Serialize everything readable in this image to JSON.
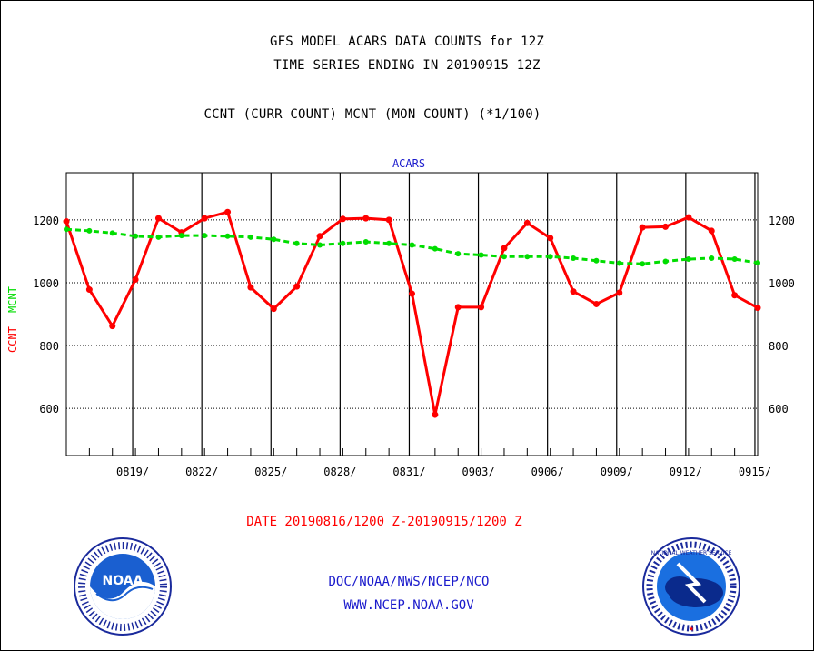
{
  "header": {
    "line1": "GFS MODEL ACARS DATA COUNTS for 12Z",
    "line2": "TIME SERIES ENDING IN 20190915 12Z",
    "line3": "CCNT (CURR COUNT) MCNT (MON COUNT) (*1/100)"
  },
  "date_range": "DATE 20190816/1200 Z-20190915/1200 Z",
  "footer": {
    "org": "DOC/NOAA/NWS/NCEP/NCO",
    "url": "WWW.NCEP.NOAA.GOV"
  },
  "logos": {
    "noaa_text": "NOAA",
    "nws_text": "NATIONAL WEATHER SERVICE"
  },
  "colors": {
    "ccnt": "#ff0000",
    "mcnt": "#00dd00",
    "title": "#1a1acc",
    "date": "#ff0000"
  },
  "chart_data": {
    "type": "line",
    "title": "ACARS",
    "ylabel_left": [
      "CCNT",
      "MCNT"
    ],
    "ylim": [
      450,
      1350
    ],
    "yticks": [
      600,
      800,
      1000,
      1200
    ],
    "grid": true,
    "x_start_day": "0816",
    "xtick_labels": [
      "0819/",
      "0822/",
      "0825/",
      "0828/",
      "0831/",
      "0903/",
      "0906/",
      "0909/",
      "0912/",
      "0915/"
    ],
    "series": [
      {
        "name": "CCNT",
        "values": [
          1195,
          978,
          862,
          1010,
          1205,
          1160,
          1205,
          1225,
          985,
          917,
          988,
          1148,
          1203,
          1205,
          1200,
          965,
          580,
          922,
          922,
          1110,
          1190,
          1142,
          972,
          932,
          968,
          1176,
          1178,
          1208,
          1165,
          960,
          920
        ]
      },
      {
        "name": "MCNT",
        "values": [
          1170,
          1165,
          1158,
          1148,
          1145,
          1150,
          1150,
          1148,
          1145,
          1138,
          1125,
          1120,
          1125,
          1130,
          1125,
          1120,
          1108,
          1092,
          1088,
          1083,
          1083,
          1083,
          1078,
          1070,
          1062,
          1060,
          1068,
          1075,
          1078,
          1075,
          1063
        ]
      }
    ]
  }
}
